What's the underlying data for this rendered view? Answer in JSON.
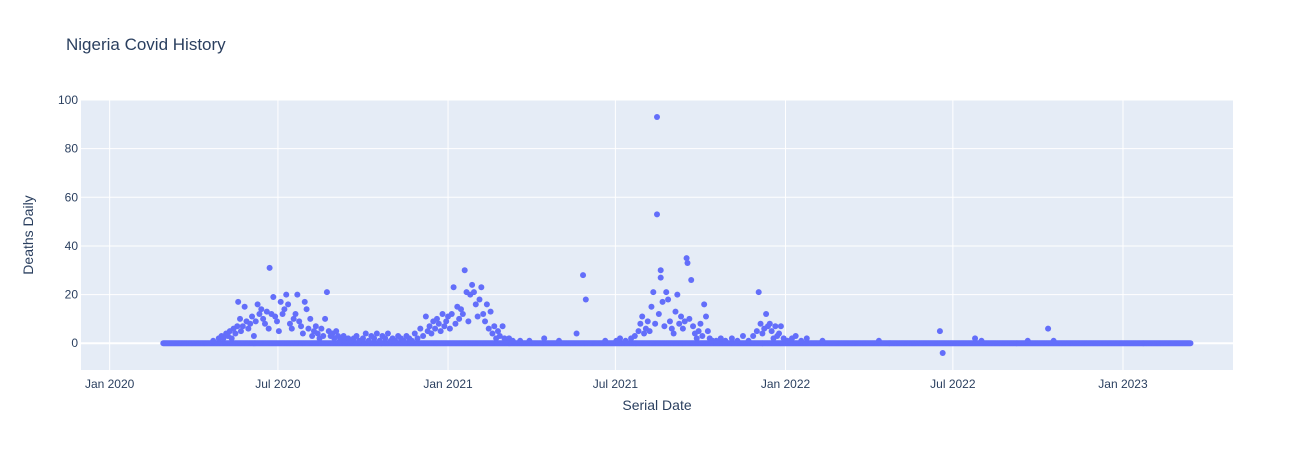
{
  "chart_data": {
    "type": "scatter",
    "title": "Nigeria Covid History",
    "xlabel": "Serial Date",
    "ylabel": "Deaths Daily",
    "xlim": [
      "2019-12-01",
      "2023-04-30"
    ],
    "ylim": [
      -11,
      100
    ],
    "x_ticks": [
      {
        "date": "2020-01-01",
        "label": "Jan 2020"
      },
      {
        "date": "2020-07-01",
        "label": "Jul 2020"
      },
      {
        "date": "2021-01-01",
        "label": "Jan 2021"
      },
      {
        "date": "2021-07-01",
        "label": "Jul 2021"
      },
      {
        "date": "2022-01-01",
        "label": "Jan 2022"
      },
      {
        "date": "2022-07-01",
        "label": "Jul 2022"
      },
      {
        "date": "2023-01-01",
        "label": "Jan 2023"
      }
    ],
    "y_ticks": [
      0,
      20,
      40,
      60,
      80,
      100
    ],
    "grid": true,
    "colors": {
      "marker": "#636efa",
      "plot_bg": "#e5ecf6",
      "grid": "#ffffff",
      "text": "#2a3f5f"
    },
    "series": [
      {
        "points": [
          [
            "2020-04-22",
            1
          ],
          [
            "2020-04-28",
            2
          ],
          [
            "2020-05-01",
            3
          ],
          [
            "2020-05-03",
            2
          ],
          [
            "2020-05-06",
            4
          ],
          [
            "2020-05-08",
            3
          ],
          [
            "2020-05-10",
            5
          ],
          [
            "2020-05-12",
            2
          ],
          [
            "2020-05-14",
            6
          ],
          [
            "2020-05-16",
            4
          ],
          [
            "2020-05-18",
            7
          ],
          [
            "2020-05-19",
            17
          ],
          [
            "2020-05-21",
            10
          ],
          [
            "2020-05-22",
            5
          ],
          [
            "2020-05-24",
            7
          ],
          [
            "2020-05-26",
            15
          ],
          [
            "2020-05-28",
            9
          ],
          [
            "2020-05-30",
            6
          ],
          [
            "2020-06-01",
            8
          ],
          [
            "2020-06-03",
            11
          ],
          [
            "2020-06-05",
            3
          ],
          [
            "2020-06-07",
            9
          ],
          [
            "2020-06-09",
            16
          ],
          [
            "2020-06-11",
            12
          ],
          [
            "2020-06-13",
            14
          ],
          [
            "2020-06-15",
            10
          ],
          [
            "2020-06-17",
            8
          ],
          [
            "2020-06-19",
            13
          ],
          [
            "2020-06-21",
            6
          ],
          [
            "2020-06-22",
            31
          ],
          [
            "2020-06-24",
            12
          ],
          [
            "2020-06-26",
            19
          ],
          [
            "2020-06-28",
            11
          ],
          [
            "2020-06-30",
            9
          ],
          [
            "2020-07-02",
            5
          ],
          [
            "2020-07-04",
            17
          ],
          [
            "2020-07-06",
            12
          ],
          [
            "2020-07-08",
            14
          ],
          [
            "2020-07-10",
            20
          ],
          [
            "2020-07-12",
            16
          ],
          [
            "2020-07-14",
            8
          ],
          [
            "2020-07-16",
            6
          ],
          [
            "2020-07-18",
            10
          ],
          [
            "2020-07-20",
            12
          ],
          [
            "2020-07-22",
            20
          ],
          [
            "2020-07-24",
            9
          ],
          [
            "2020-07-26",
            7
          ],
          [
            "2020-07-28",
            4
          ],
          [
            "2020-07-30",
            17
          ],
          [
            "2020-08-01",
            14
          ],
          [
            "2020-08-03",
            6
          ],
          [
            "2020-08-05",
            10
          ],
          [
            "2020-08-07",
            3
          ],
          [
            "2020-08-09",
            5
          ],
          [
            "2020-08-11",
            7
          ],
          [
            "2020-08-13",
            4
          ],
          [
            "2020-08-15",
            2
          ],
          [
            "2020-08-17",
            6
          ],
          [
            "2020-08-19",
            3
          ],
          [
            "2020-08-21",
            10
          ],
          [
            "2020-08-23",
            21
          ],
          [
            "2020-08-25",
            5
          ],
          [
            "2020-08-27",
            3
          ],
          [
            "2020-08-29",
            4
          ],
          [
            "2020-08-31",
            2
          ],
          [
            "2020-09-02",
            5
          ],
          [
            "2020-09-04",
            3
          ],
          [
            "2020-09-06",
            1
          ],
          [
            "2020-09-08",
            2
          ],
          [
            "2020-09-10",
            3
          ],
          [
            "2020-09-12",
            1
          ],
          [
            "2020-09-15",
            2
          ],
          [
            "2020-09-18",
            1
          ],
          [
            "2020-09-21",
            2
          ],
          [
            "2020-09-24",
            3
          ],
          [
            "2020-09-27",
            1
          ],
          [
            "2020-10-01",
            2
          ],
          [
            "2020-10-04",
            4
          ],
          [
            "2020-10-07",
            1
          ],
          [
            "2020-10-10",
            3
          ],
          [
            "2020-10-13",
            2
          ],
          [
            "2020-10-16",
            4
          ],
          [
            "2020-10-19",
            1
          ],
          [
            "2020-10-22",
            3
          ],
          [
            "2020-10-25",
            2
          ],
          [
            "2020-10-28",
            4
          ],
          [
            "2020-10-31",
            1
          ],
          [
            "2020-11-02",
            2
          ],
          [
            "2020-11-05",
            1
          ],
          [
            "2020-11-08",
            3
          ],
          [
            "2020-11-11",
            2
          ],
          [
            "2020-11-14",
            1
          ],
          [
            "2020-11-17",
            3
          ],
          [
            "2020-11-20",
            2
          ],
          [
            "2020-11-23",
            1
          ],
          [
            "2020-11-26",
            4
          ],
          [
            "2020-11-29",
            2
          ],
          [
            "2020-12-02",
            6
          ],
          [
            "2020-12-05",
            3
          ],
          [
            "2020-12-08",
            11
          ],
          [
            "2020-12-10",
            5
          ],
          [
            "2020-12-12",
            7
          ],
          [
            "2020-12-14",
            4
          ],
          [
            "2020-12-16",
            9
          ],
          [
            "2020-12-18",
            6
          ],
          [
            "2020-12-20",
            10
          ],
          [
            "2020-12-22",
            8
          ],
          [
            "2020-12-24",
            5
          ],
          [
            "2020-12-26",
            12
          ],
          [
            "2020-12-28",
            7
          ],
          [
            "2020-12-30",
            9
          ],
          [
            "2021-01-01",
            11
          ],
          [
            "2021-01-03",
            6
          ],
          [
            "2021-01-05",
            12
          ],
          [
            "2021-01-07",
            23
          ],
          [
            "2021-01-09",
            8
          ],
          [
            "2021-01-11",
            15
          ],
          [
            "2021-01-13",
            10
          ],
          [
            "2021-01-15",
            14
          ],
          [
            "2021-01-17",
            12
          ],
          [
            "2021-01-19",
            30
          ],
          [
            "2021-01-21",
            21
          ],
          [
            "2021-01-23",
            9
          ],
          [
            "2021-01-25",
            20
          ],
          [
            "2021-01-27",
            24
          ],
          [
            "2021-01-29",
            21
          ],
          [
            "2021-01-31",
            16
          ],
          [
            "2021-02-02",
            11
          ],
          [
            "2021-02-04",
            18
          ],
          [
            "2021-02-06",
            23
          ],
          [
            "2021-02-08",
            12
          ],
          [
            "2021-02-10",
            9
          ],
          [
            "2021-02-12",
            16
          ],
          [
            "2021-02-14",
            6
          ],
          [
            "2021-02-16",
            13
          ],
          [
            "2021-02-18",
            4
          ],
          [
            "2021-02-20",
            7
          ],
          [
            "2021-02-22",
            2
          ],
          [
            "2021-02-24",
            5
          ],
          [
            "2021-02-26",
            3
          ],
          [
            "2021-03-01",
            7
          ],
          [
            "2021-03-03",
            2
          ],
          [
            "2021-03-05",
            1
          ],
          [
            "2021-03-08",
            2
          ],
          [
            "2021-03-12",
            1
          ],
          [
            "2021-03-20",
            1
          ],
          [
            "2021-03-30",
            1
          ],
          [
            "2021-04-15",
            2
          ],
          [
            "2021-05-01",
            1
          ],
          [
            "2021-05-20",
            4
          ],
          [
            "2021-05-27",
            28
          ],
          [
            "2021-05-30",
            18
          ],
          [
            "2021-06-20",
            1
          ],
          [
            "2021-07-02",
            1
          ],
          [
            "2021-07-06",
            2
          ],
          [
            "2021-07-12",
            1
          ],
          [
            "2021-07-18",
            2
          ],
          [
            "2021-07-22",
            3
          ],
          [
            "2021-07-26",
            5
          ],
          [
            "2021-07-28",
            8
          ],
          [
            "2021-07-30",
            11
          ],
          [
            "2021-08-01",
            4
          ],
          [
            "2021-08-03",
            6
          ],
          [
            "2021-08-05",
            9
          ],
          [
            "2021-08-07",
            5
          ],
          [
            "2021-08-09",
            15
          ],
          [
            "2021-08-11",
            21
          ],
          [
            "2021-08-13",
            8
          ],
          [
            "2021-08-15",
            93
          ],
          [
            "2021-08-15",
            53
          ],
          [
            "2021-08-17",
            12
          ],
          [
            "2021-08-19",
            30
          ],
          [
            "2021-08-19",
            27
          ],
          [
            "2021-08-21",
            17
          ],
          [
            "2021-08-23",
            7
          ],
          [
            "2021-08-25",
            21
          ],
          [
            "2021-08-27",
            18
          ],
          [
            "2021-08-29",
            9
          ],
          [
            "2021-08-31",
            6
          ],
          [
            "2021-09-02",
            4
          ],
          [
            "2021-09-04",
            13
          ],
          [
            "2021-09-06",
            20
          ],
          [
            "2021-09-08",
            8
          ],
          [
            "2021-09-10",
            11
          ],
          [
            "2021-09-12",
            6
          ],
          [
            "2021-09-14",
            9
          ],
          [
            "2021-09-16",
            35
          ],
          [
            "2021-09-17",
            33
          ],
          [
            "2021-09-19",
            10
          ],
          [
            "2021-09-21",
            26
          ],
          [
            "2021-09-23",
            7
          ],
          [
            "2021-09-25",
            4
          ],
          [
            "2021-09-27",
            2
          ],
          [
            "2021-09-29",
            5
          ],
          [
            "2021-10-01",
            8
          ],
          [
            "2021-10-03",
            3
          ],
          [
            "2021-10-05",
            16
          ],
          [
            "2021-10-07",
            11
          ],
          [
            "2021-10-09",
            5
          ],
          [
            "2021-10-11",
            2
          ],
          [
            "2021-10-14",
            1
          ],
          [
            "2021-10-18",
            1
          ],
          [
            "2021-10-23",
            2
          ],
          [
            "2021-10-28",
            1
          ],
          [
            "2021-11-04",
            2
          ],
          [
            "2021-11-10",
            1
          ],
          [
            "2021-11-16",
            3
          ],
          [
            "2021-11-22",
            1
          ],
          [
            "2021-11-27",
            3
          ],
          [
            "2021-12-01",
            5
          ],
          [
            "2021-12-03",
            21
          ],
          [
            "2021-12-05",
            8
          ],
          [
            "2021-12-07",
            4
          ],
          [
            "2021-12-09",
            6
          ],
          [
            "2021-12-11",
            12
          ],
          [
            "2021-12-13",
            7
          ],
          [
            "2021-12-15",
            8
          ],
          [
            "2021-12-17",
            5
          ],
          [
            "2021-12-19",
            2
          ],
          [
            "2021-12-21",
            7
          ],
          [
            "2021-12-23",
            3
          ],
          [
            "2021-12-25",
            4
          ],
          [
            "2021-12-27",
            7
          ],
          [
            "2021-12-30",
            2
          ],
          [
            "2022-01-03",
            1
          ],
          [
            "2022-01-08",
            2
          ],
          [
            "2022-01-12",
            3
          ],
          [
            "2022-01-18",
            1
          ],
          [
            "2022-01-24",
            2
          ],
          [
            "2022-02-10",
            1
          ],
          [
            "2022-04-12",
            1
          ],
          [
            "2022-06-17",
            5
          ],
          [
            "2022-06-20",
            -4
          ],
          [
            "2022-07-25",
            2
          ],
          [
            "2022-08-01",
            1
          ],
          [
            "2022-09-20",
            1
          ],
          [
            "2022-10-12",
            6
          ],
          [
            "2022-10-18",
            1
          ]
        ],
        "zero_ranges": [
          [
            "2020-02-28",
            "2023-03-15"
          ]
        ]
      }
    ]
  }
}
